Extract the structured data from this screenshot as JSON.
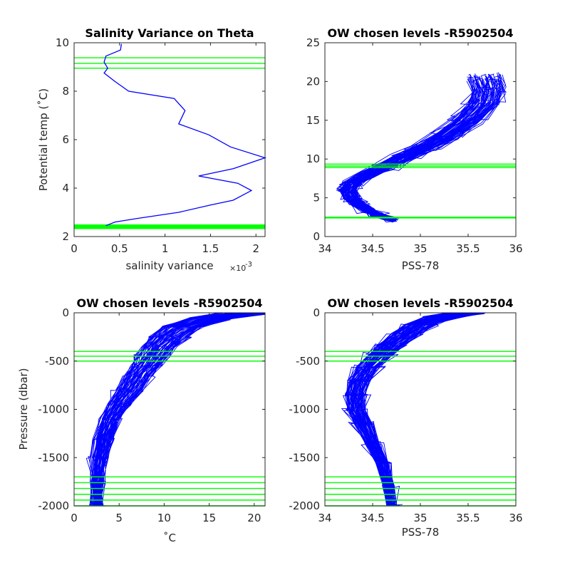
{
  "chart_data": [
    {
      "type": "line",
      "title": "Salinity Variance on Theta",
      "xlabel": "salinity variance",
      "x_exponent_base": "×10",
      "x_exponent_power": "-3",
      "ylabel": "Potential temp (˚C)",
      "xlim": [
        0,
        0.0021
      ],
      "ylim": [
        2,
        10
      ],
      "xticks": [
        0,
        0.0005,
        0.001,
        0.0015,
        0.002
      ],
      "xtick_labels": [
        "0",
        "0.5",
        "1",
        "1.5",
        "2"
      ],
      "yticks": [
        2,
        4,
        6,
        8,
        10
      ],
      "ytick_labels": [
        "2",
        "4",
        "6",
        "8",
        "10"
      ],
      "series": [
        {
          "color": "#0000ff",
          "x": [
            0.00052,
            0.00051,
            0.00035,
            0.00033,
            0.00037,
            0.00033,
            0.00045,
            0.0006,
            0.0011,
            0.00122,
            0.00115,
            0.00148,
            0.00172,
            0.0021,
            0.00175,
            0.00137,
            0.0018,
            0.00195,
            0.00175,
            0.0015,
            0.00115,
            0.0007,
            0.00045,
            0.00035
          ],
          "y": [
            9.95,
            9.7,
            9.45,
            9.2,
            8.95,
            8.75,
            8.4,
            8.0,
            7.7,
            7.2,
            6.65,
            6.2,
            5.7,
            5.25,
            4.8,
            4.5,
            4.2,
            3.9,
            3.5,
            3.3,
            3.0,
            2.75,
            2.6,
            2.45
          ]
        }
      ],
      "reference_lines": {
        "color": "#00ff00",
        "theta_levels": [
          9.38,
          9.15,
          8.95,
          2.48,
          2.45,
          2.42,
          2.39,
          2.36,
          2.33
        ]
      }
    },
    {
      "type": "line",
      "title": "OW chosen levels -R5902504",
      "xlabel": "PSS-78",
      "ylabel": "",
      "xlim": [
        34,
        36
      ],
      "ylim": [
        0,
        25
      ],
      "xticks": [
        34,
        34.5,
        35,
        35.5,
        36
      ],
      "xtick_labels": [
        "34",
        "34.5",
        "35",
        "35.5",
        "36"
      ],
      "yticks": [
        0,
        5,
        10,
        15,
        20,
        25
      ],
      "ytick_labels": [
        "0",
        "5",
        "10",
        "15",
        "20",
        "25"
      ],
      "profile_count": 70,
      "profile_color": "#0000ff",
      "series_shape": {
        "salinity": [
          34.72,
          34.55,
          34.45,
          34.35,
          34.28,
          34.25,
          34.3,
          34.45,
          34.62,
          34.82,
          35.05,
          35.28,
          35.5,
          35.68,
          35.72,
          35.68
        ],
        "theta": [
          2.2,
          2.8,
          3.4,
          4.2,
          5.0,
          6.0,
          7.0,
          8.0,
          9.0,
          10.2,
          11.5,
          13.0,
          15.0,
          17.2,
          19.0,
          20.5
        ]
      },
      "reference_lines": {
        "color": "#00ff00",
        "theta_levels": [
          9.35,
          9.1,
          8.9,
          2.5,
          2.4
        ]
      }
    },
    {
      "type": "line",
      "title": "OW chosen levels -R5902504",
      "xlabel": "˚C",
      "ylabel": "Pressure (dbar)",
      "xlim": [
        0,
        21.2
      ],
      "ylim": [
        -2000,
        0
      ],
      "xticks": [
        0,
        5,
        10,
        15,
        20
      ],
      "xtick_labels": [
        "0",
        "5",
        "10",
        "15",
        "20"
      ],
      "yticks": [
        0,
        -500,
        -1000,
        -1500,
        -2000
      ],
      "ytick_labels": [
        "0",
        "-500",
        "-1000",
        "-1500",
        "-2000"
      ],
      "profile_count": 70,
      "profile_color": "#0000ff",
      "series_shape": {
        "temperature": [
          19.5,
          15.0,
          12.0,
          10.5,
          9.5,
          8.7,
          8.0,
          7.2,
          6.2,
          5.0,
          4.0,
          3.3,
          2.8,
          2.6,
          2.5
        ],
        "pressure": [
          0,
          -60,
          -150,
          -250,
          -350,
          -450,
          -550,
          -650,
          -800,
          -950,
          -1100,
          -1300,
          -1500,
          -1750,
          -2000
        ]
      },
      "reference_lines": {
        "color": "#00ff00",
        "pressure_levels": [
          -400,
          -450,
          -500,
          -1700,
          -1760,
          -1820,
          -1880,
          -1940,
          -2000
        ]
      }
    },
    {
      "type": "line",
      "title": "OW chosen levels -R5902504",
      "xlabel": "PSS-78",
      "ylabel": "",
      "xlim": [
        34,
        36
      ],
      "ylim": [
        -2000,
        0
      ],
      "xticks": [
        34,
        34.5,
        35,
        35.5,
        36
      ],
      "xtick_labels": [
        "34",
        "34.5",
        "35",
        "35.5",
        "36"
      ],
      "yticks": [
        0,
        -500,
        -1000,
        -1500,
        -2000
      ],
      "ytick_labels": [
        "0",
        "-500",
        "-1000",
        "-1500",
        "-2000"
      ],
      "profile_count": 70,
      "profile_color": "#0000ff",
      "series_shape": {
        "salinity": [
          35.5,
          35.2,
          35.0,
          34.85,
          34.7,
          34.58,
          34.45,
          34.36,
          34.32,
          34.33,
          34.4,
          34.5,
          34.6,
          34.67,
          34.7
        ],
        "pressure": [
          0,
          -50,
          -120,
          -220,
          -330,
          -430,
          -560,
          -700,
          -850,
          -1000,
          -1150,
          -1350,
          -1550,
          -1800,
          -2000
        ]
      },
      "reference_lines": {
        "color": "#00ff00",
        "pressure_levels": [
          -400,
          -450,
          -500,
          -1700,
          -1760,
          -1820,
          -1880,
          -1940,
          -2000
        ]
      }
    }
  ]
}
